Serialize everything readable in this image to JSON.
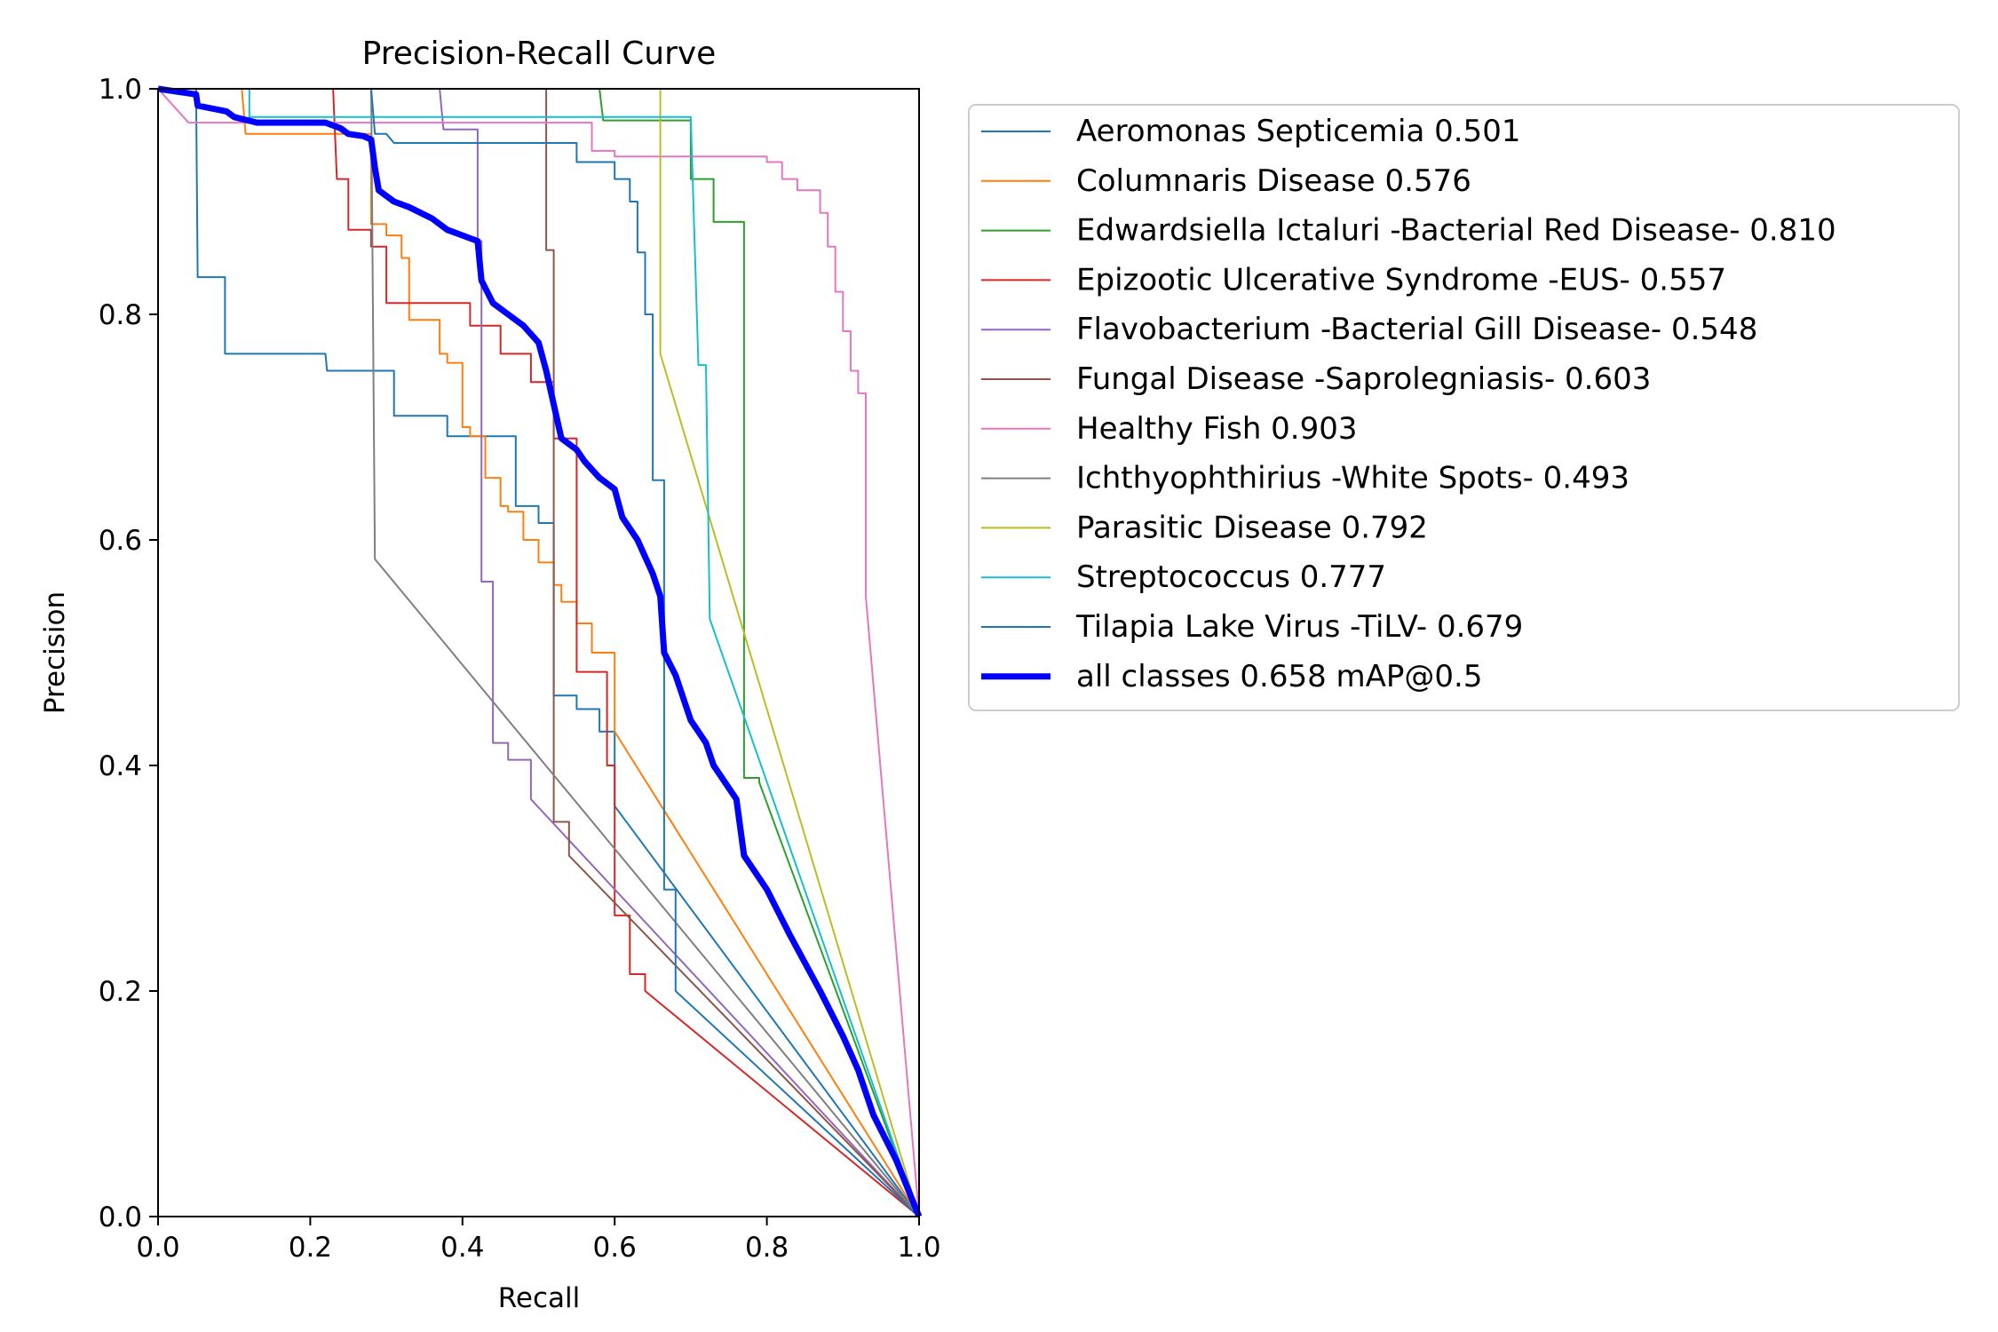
{
  "chart_data": {
    "type": "line",
    "title": "Precision-Recall Curve",
    "xlabel": "Recall",
    "ylabel": "Precision",
    "xlim": [
      0,
      1
    ],
    "ylim": [
      0,
      1
    ],
    "xticks": [
      "0.0",
      "0.2",
      "0.4",
      "0.6",
      "0.8",
      "1.0"
    ],
    "yticks": [
      "0.0",
      "0.2",
      "0.4",
      "0.6",
      "0.8",
      "1.0"
    ],
    "grid": false,
    "legend_position": "outside-right",
    "series": [
      {
        "name": "Aeromonas Septicemia 0.501",
        "color": "#1f77b4",
        "width": 1,
        "points": [
          [
            0,
            1
          ],
          [
            0.05,
            1
          ],
          [
            0.052,
            0.833
          ],
          [
            0.088,
            0.833
          ],
          [
            0.088,
            0.765
          ],
          [
            0.22,
            0.765
          ],
          [
            0.222,
            0.75
          ],
          [
            0.31,
            0.75
          ],
          [
            0.31,
            0.71
          ],
          [
            0.38,
            0.71
          ],
          [
            0.38,
            0.692
          ],
          [
            0.47,
            0.692
          ],
          [
            0.47,
            0.63
          ],
          [
            0.5,
            0.63
          ],
          [
            0.5,
            0.615
          ],
          [
            0.52,
            0.615
          ],
          [
            0.52,
            0.462
          ],
          [
            0.55,
            0.462
          ],
          [
            0.55,
            0.45
          ],
          [
            0.58,
            0.45
          ],
          [
            0.58,
            0.43
          ],
          [
            0.6,
            0.43
          ],
          [
            0.6,
            0.364
          ],
          [
            1,
            0
          ]
        ]
      },
      {
        "name": "Columnaris Disease 0.576",
        "color": "#ff7f0e",
        "width": 1,
        "points": [
          [
            0,
            1
          ],
          [
            0.11,
            1
          ],
          [
            0.115,
            0.96
          ],
          [
            0.28,
            0.96
          ],
          [
            0.28,
            0.88
          ],
          [
            0.3,
            0.88
          ],
          [
            0.3,
            0.87
          ],
          [
            0.32,
            0.87
          ],
          [
            0.32,
            0.85
          ],
          [
            0.33,
            0.85
          ],
          [
            0.33,
            0.795
          ],
          [
            0.37,
            0.795
          ],
          [
            0.37,
            0.765
          ],
          [
            0.38,
            0.765
          ],
          [
            0.38,
            0.757
          ],
          [
            0.4,
            0.757
          ],
          [
            0.4,
            0.7
          ],
          [
            0.41,
            0.7
          ],
          [
            0.41,
            0.692
          ],
          [
            0.43,
            0.692
          ],
          [
            0.43,
            0.655
          ],
          [
            0.45,
            0.655
          ],
          [
            0.45,
            0.63
          ],
          [
            0.46,
            0.63
          ],
          [
            0.46,
            0.625
          ],
          [
            0.48,
            0.625
          ],
          [
            0.48,
            0.6
          ],
          [
            0.5,
            0.6
          ],
          [
            0.5,
            0.58
          ],
          [
            0.52,
            0.58
          ],
          [
            0.52,
            0.56
          ],
          [
            0.53,
            0.56
          ],
          [
            0.53,
            0.545
          ],
          [
            0.55,
            0.545
          ],
          [
            0.55,
            0.526
          ],
          [
            0.57,
            0.526
          ],
          [
            0.57,
            0.5
          ],
          [
            0.6,
            0.5
          ],
          [
            0.6,
            0.43
          ],
          [
            1,
            0
          ]
        ]
      },
      {
        "name": "Edwardsiella Ictaluri -Bacterial Red Disease- 0.810",
        "color": "#2ca02c",
        "width": 1,
        "points": [
          [
            0,
            1
          ],
          [
            0.58,
            1
          ],
          [
            0.585,
            0.972
          ],
          [
            0.7,
            0.972
          ],
          [
            0.7,
            0.92
          ],
          [
            0.73,
            0.92
          ],
          [
            0.73,
            0.882
          ],
          [
            0.77,
            0.882
          ],
          [
            0.77,
            0.389
          ],
          [
            0.79,
            0.389
          ],
          [
            0.79,
            0.385
          ],
          [
            1,
            0
          ]
        ]
      },
      {
        "name": "Epizootic Ulcerative Syndrome -EUS- 0.557",
        "color": "#d62728",
        "width": 1,
        "points": [
          [
            0,
            1
          ],
          [
            0.23,
            1
          ],
          [
            0.235,
            0.92
          ],
          [
            0.25,
            0.92
          ],
          [
            0.25,
            0.875
          ],
          [
            0.28,
            0.875
          ],
          [
            0.28,
            0.86
          ],
          [
            0.3,
            0.86
          ],
          [
            0.3,
            0.81
          ],
          [
            0.41,
            0.81
          ],
          [
            0.41,
            0.79
          ],
          [
            0.45,
            0.79
          ],
          [
            0.45,
            0.765
          ],
          [
            0.49,
            0.765
          ],
          [
            0.49,
            0.74
          ],
          [
            0.52,
            0.74
          ],
          [
            0.52,
            0.69
          ],
          [
            0.55,
            0.69
          ],
          [
            0.55,
            0.483
          ],
          [
            0.59,
            0.483
          ],
          [
            0.59,
            0.4
          ],
          [
            0.6,
            0.4
          ],
          [
            0.6,
            0.267
          ],
          [
            0.62,
            0.267
          ],
          [
            0.62,
            0.215
          ],
          [
            0.64,
            0.215
          ],
          [
            0.64,
            0.2
          ],
          [
            1,
            0
          ]
        ]
      },
      {
        "name": "Flavobacterium -Bacterial Gill Disease- 0.548",
        "color": "#9467bd",
        "width": 1,
        "points": [
          [
            0,
            1
          ],
          [
            0.37,
            1
          ],
          [
            0.375,
            0.964
          ],
          [
            0.42,
            0.964
          ],
          [
            0.42,
            0.865
          ],
          [
            0.425,
            0.865
          ],
          [
            0.425,
            0.563
          ],
          [
            0.44,
            0.563
          ],
          [
            0.44,
            0.42
          ],
          [
            0.46,
            0.42
          ],
          [
            0.46,
            0.405
          ],
          [
            0.49,
            0.405
          ],
          [
            0.49,
            0.37
          ],
          [
            1,
            0
          ]
        ]
      },
      {
        "name": "Fungal Disease -Saprolegniasis- 0.603",
        "color": "#8c564b",
        "width": 1,
        "points": [
          [
            0,
            1
          ],
          [
            0.51,
            1
          ],
          [
            0.51,
            0.857
          ],
          [
            0.52,
            0.857
          ],
          [
            0.52,
            0.35
          ],
          [
            0.54,
            0.35
          ],
          [
            0.54,
            0.32
          ],
          [
            1,
            0
          ]
        ]
      },
      {
        "name": "Healthy Fish 0.903",
        "color": "#e377c2",
        "width": 1,
        "points": [
          [
            0,
            1
          ],
          [
            0.04,
            0.97
          ],
          [
            0.57,
            0.97
          ],
          [
            0.57,
            0.945
          ],
          [
            0.6,
            0.945
          ],
          [
            0.6,
            0.94
          ],
          [
            0.8,
            0.94
          ],
          [
            0.8,
            0.935
          ],
          [
            0.82,
            0.935
          ],
          [
            0.82,
            0.92
          ],
          [
            0.84,
            0.92
          ],
          [
            0.84,
            0.91
          ],
          [
            0.87,
            0.91
          ],
          [
            0.87,
            0.89
          ],
          [
            0.88,
            0.89
          ],
          [
            0.88,
            0.86
          ],
          [
            0.89,
            0.86
          ],
          [
            0.89,
            0.82
          ],
          [
            0.9,
            0.82
          ],
          [
            0.9,
            0.785
          ],
          [
            0.91,
            0.785
          ],
          [
            0.91,
            0.75
          ],
          [
            0.92,
            0.75
          ],
          [
            0.92,
            0.73
          ],
          [
            0.93,
            0.73
          ],
          [
            0.93,
            0.55
          ],
          [
            1,
            0
          ]
        ]
      },
      {
        "name": "Ichthyophthirius -White Spots- 0.493",
        "color": "#7f7f7f",
        "width": 1,
        "points": [
          [
            0,
            1
          ],
          [
            0.28,
            1
          ],
          [
            0.285,
            0.583
          ],
          [
            1,
            0
          ]
        ]
      },
      {
        "name": "Parasitic Disease 0.792",
        "color": "#bcbd22",
        "width": 1,
        "points": [
          [
            0,
            1
          ],
          [
            0.66,
            1
          ],
          [
            0.66,
            0.765
          ],
          [
            1,
            0
          ]
        ]
      },
      {
        "name": "Streptococcus 0.777",
        "color": "#17becf",
        "width": 1,
        "points": [
          [
            0,
            1
          ],
          [
            0.12,
            1
          ],
          [
            0.12,
            0.975
          ],
          [
            0.7,
            0.975
          ],
          [
            0.71,
            0.755
          ],
          [
            0.72,
            0.755
          ],
          [
            0.725,
            0.53
          ],
          [
            1,
            0
          ]
        ]
      },
      {
        "name": "Tilapia Lake Virus -TiLV- 0.679",
        "color": "#1f77b4",
        "width": 1,
        "points": [
          [
            0,
            1
          ],
          [
            0.28,
            1
          ],
          [
            0.285,
            0.96
          ],
          [
            0.3,
            0.96
          ],
          [
            0.31,
            0.952
          ],
          [
            0.55,
            0.952
          ],
          [
            0.55,
            0.935
          ],
          [
            0.6,
            0.935
          ],
          [
            0.6,
            0.92
          ],
          [
            0.62,
            0.92
          ],
          [
            0.62,
            0.9
          ],
          [
            0.63,
            0.9
          ],
          [
            0.63,
            0.855
          ],
          [
            0.64,
            0.855
          ],
          [
            0.64,
            0.8
          ],
          [
            0.65,
            0.8
          ],
          [
            0.65,
            0.653
          ],
          [
            0.665,
            0.653
          ],
          [
            0.665,
            0.29
          ],
          [
            0.68,
            0.29
          ],
          [
            0.68,
            0.2
          ],
          [
            1,
            0
          ]
        ]
      },
      {
        "name": "all classes 0.658 mAP@0.5",
        "color": "#0000ff",
        "width": 6,
        "points": [
          [
            0,
            1
          ],
          [
            0.05,
            0.995
          ],
          [
            0.052,
            0.985
          ],
          [
            0.09,
            0.98
          ],
          [
            0.1,
            0.975
          ],
          [
            0.13,
            0.97
          ],
          [
            0.22,
            0.97
          ],
          [
            0.24,
            0.965
          ],
          [
            0.25,
            0.96
          ],
          [
            0.27,
            0.958
          ],
          [
            0.28,
            0.955
          ],
          [
            0.285,
            0.93
          ],
          [
            0.29,
            0.91
          ],
          [
            0.31,
            0.9
          ],
          [
            0.33,
            0.895
          ],
          [
            0.36,
            0.885
          ],
          [
            0.38,
            0.875
          ],
          [
            0.4,
            0.87
          ],
          [
            0.42,
            0.865
          ],
          [
            0.425,
            0.83
          ],
          [
            0.44,
            0.81
          ],
          [
            0.46,
            0.8
          ],
          [
            0.48,
            0.79
          ],
          [
            0.5,
            0.775
          ],
          [
            0.51,
            0.75
          ],
          [
            0.52,
            0.72
          ],
          [
            0.53,
            0.69
          ],
          [
            0.55,
            0.68
          ],
          [
            0.56,
            0.67
          ],
          [
            0.58,
            0.655
          ],
          [
            0.6,
            0.645
          ],
          [
            0.61,
            0.62
          ],
          [
            0.63,
            0.6
          ],
          [
            0.65,
            0.57
          ],
          [
            0.66,
            0.55
          ],
          [
            0.665,
            0.5
          ],
          [
            0.68,
            0.48
          ],
          [
            0.7,
            0.44
          ],
          [
            0.72,
            0.42
          ],
          [
            0.73,
            0.4
          ],
          [
            0.76,
            0.37
          ],
          [
            0.77,
            0.32
          ],
          [
            0.8,
            0.29
          ],
          [
            0.83,
            0.25
          ],
          [
            0.87,
            0.2
          ],
          [
            0.9,
            0.16
          ],
          [
            0.92,
            0.13
          ],
          [
            0.94,
            0.09
          ],
          [
            0.97,
            0.05
          ],
          [
            1,
            0
          ]
        ]
      }
    ]
  }
}
